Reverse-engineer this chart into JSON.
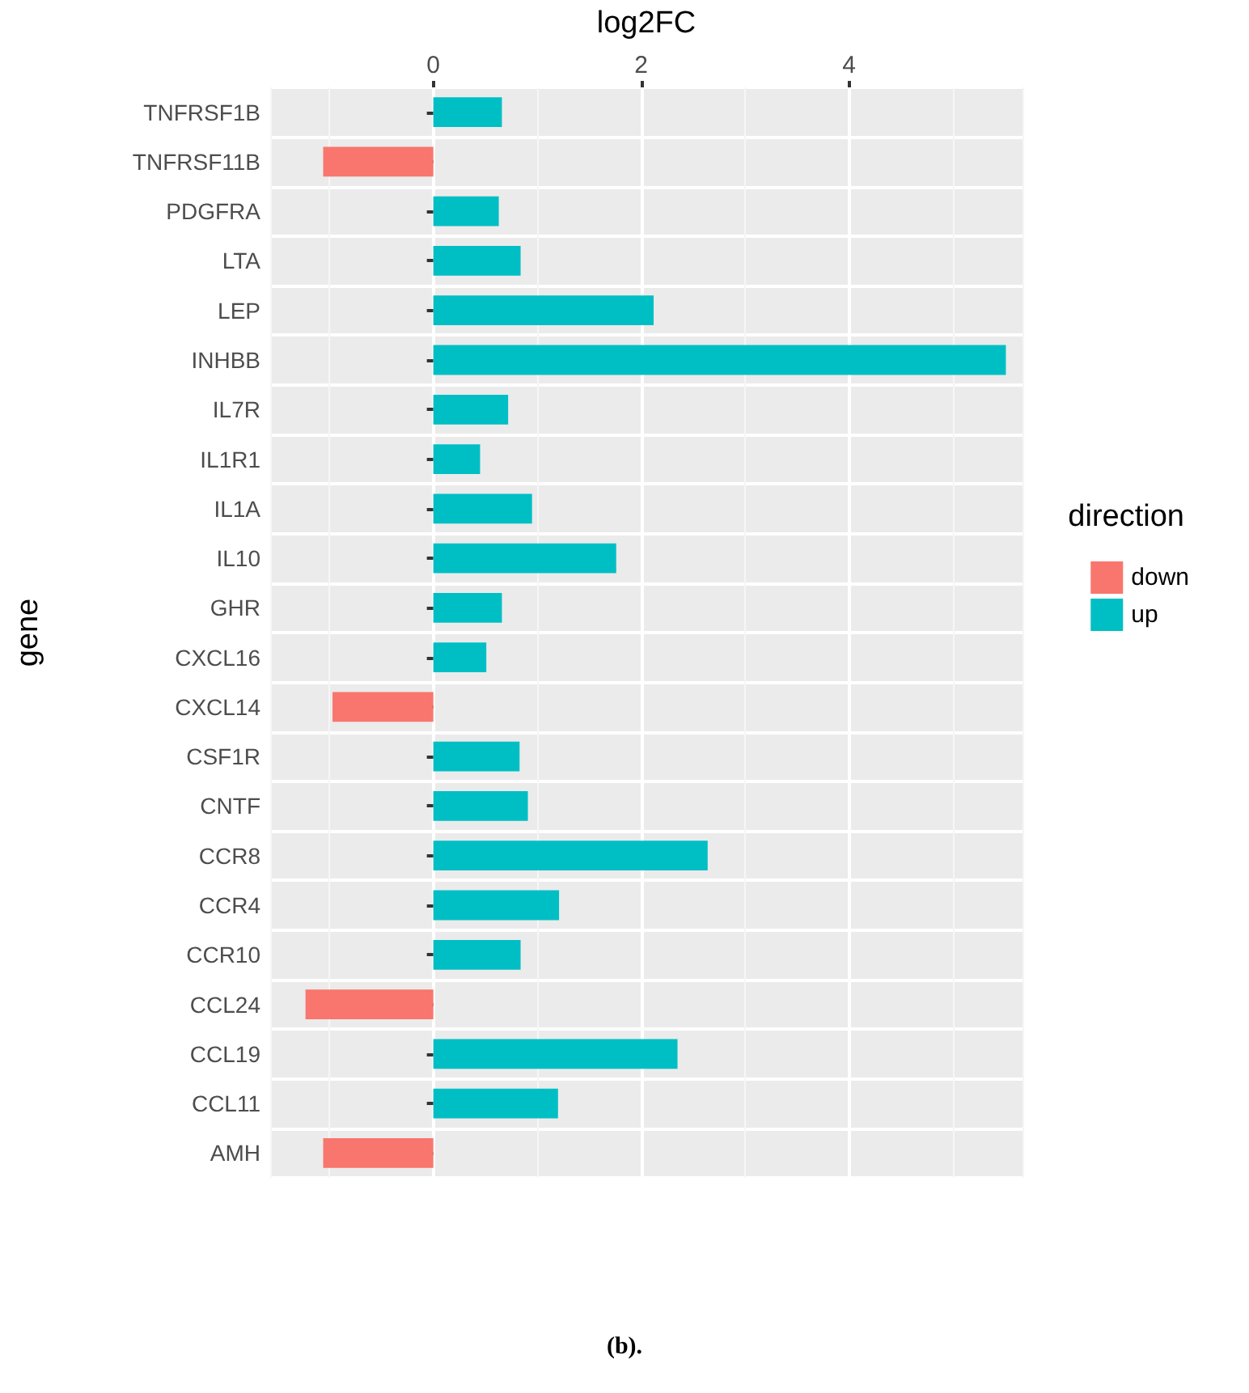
{
  "chart_data": {
    "type": "bar",
    "orientation": "horizontal",
    "xlabel": "log2FC",
    "ylabel": "gene",
    "legend_title": "direction",
    "legend": "right",
    "grid": true,
    "categories": [
      "TNFRSF1B",
      "TNFRSF11B",
      "PDGFRA",
      "LTA",
      "LEP",
      "INHBB",
      "IL7R",
      "IL1R1",
      "IL1A",
      "IL10",
      "GHR",
      "CXCL16",
      "CXCL14",
      "CSF1R",
      "CNTF",
      "CCR8",
      "CCR4",
      "CCR10",
      "CCL24",
      "CCL19",
      "CCL11",
      "AMH"
    ],
    "series": [
      {
        "name": "down",
        "color": "#f8766d",
        "values": [
          null,
          -1.06,
          null,
          null,
          null,
          null,
          null,
          null,
          null,
          null,
          null,
          null,
          -0.97,
          null,
          null,
          null,
          null,
          null,
          -1.23,
          null,
          null,
          -1.06
        ]
      },
      {
        "name": "up",
        "color": "#00bfc4",
        "values": [
          0.66,
          null,
          0.63,
          0.84,
          2.12,
          5.51,
          0.72,
          0.45,
          0.95,
          1.76,
          0.66,
          0.51,
          null,
          0.83,
          0.91,
          2.64,
          1.21,
          0.84,
          null,
          2.35,
          1.2,
          null
        ]
      }
    ],
    "xlim": [
      -1.57,
      5.67
    ],
    "xticks": [
      0,
      2,
      4
    ],
    "annotations": [
      "(b)."
    ]
  }
}
